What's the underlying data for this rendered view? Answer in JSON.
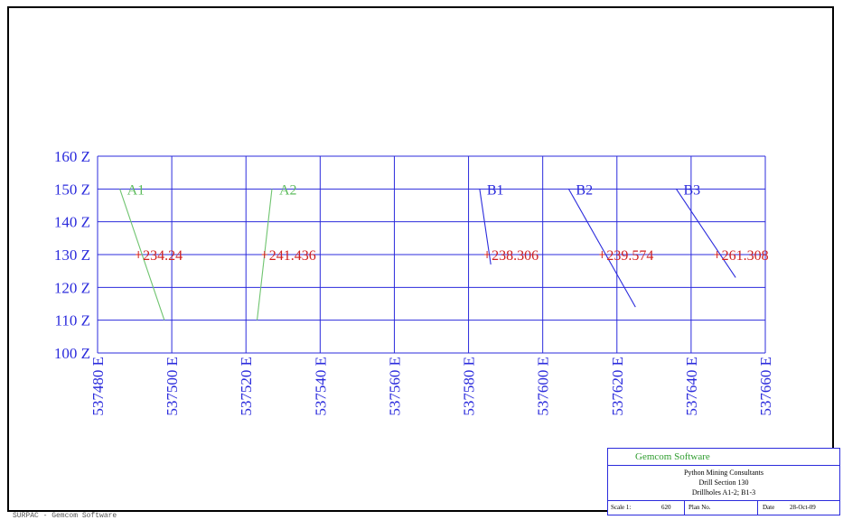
{
  "colors": {
    "grid": "#2b2bdc",
    "axis_text": "#2b2bdc",
    "group_a": "#6fc46f",
    "group_b": "#2b2bdc",
    "intercept": "#d02020",
    "label_a": "#5dbb5d"
  },
  "chart_data": {
    "type": "scatter",
    "title": "",
    "xlabel": "",
    "ylabel": "",
    "xlim": [
      537480,
      537660
    ],
    "ylim": [
      100,
      160
    ],
    "grid": true,
    "x_ticks": [
      537480,
      537500,
      537520,
      537540,
      537560,
      537580,
      537600,
      537620,
      537640,
      537660
    ],
    "x_tick_labels": [
      "537480 E",
      "537500 E",
      "537520 E",
      "537540 E",
      "537560 E",
      "537580 E",
      "537600 E",
      "537620 E",
      "537640 E",
      "537660 E"
    ],
    "y_ticks": [
      100,
      110,
      120,
      130,
      140,
      150,
      160
    ],
    "y_tick_labels": [
      "100 Z",
      "110 Z",
      "120 Z",
      "130 Z",
      "140 Z",
      "150 Z",
      "160 Z"
    ],
    "drillholes": [
      {
        "name": "A1",
        "group": "a",
        "trace": [
          [
            537486,
            150
          ],
          [
            537498,
            110
          ]
        ],
        "intercept": {
          "x": 537491,
          "y": 130,
          "label": "234.24"
        }
      },
      {
        "name": "A2",
        "group": "a",
        "trace": [
          [
            537527,
            150
          ],
          [
            537523,
            110
          ]
        ],
        "intercept": {
          "x": 537525,
          "y": 130,
          "label": "241.436"
        }
      },
      {
        "name": "B1",
        "group": "b",
        "trace": [
          [
            537583,
            150
          ],
          [
            537586,
            127
          ]
        ],
        "intercept": {
          "x": 537585,
          "y": 130,
          "label": "238.306"
        }
      },
      {
        "name": "B2",
        "group": "b",
        "trace": [
          [
            537607,
            150
          ],
          [
            537625,
            114
          ]
        ],
        "intercept": {
          "x": 537616,
          "y": 130,
          "label": "239.574"
        }
      },
      {
        "name": "B3",
        "group": "b",
        "trace": [
          [
            537636,
            150
          ],
          [
            537652,
            123
          ]
        ],
        "intercept": {
          "x": 537647,
          "y": 130,
          "label": "261.308"
        }
      }
    ]
  },
  "title_block": {
    "company": "Gemcom Software",
    "client": "Python Mining Consultants",
    "section": "Drill Section 130",
    "holes": "Drillholes A1-2; B1-3",
    "scale_label": "Scale 1:",
    "scale_value": "620",
    "plan_label": "Plan No.",
    "plan_value": "",
    "date_label": "Date",
    "date_value": "28-Oct-09"
  },
  "footer": "SURPAC - Gemcom Software"
}
